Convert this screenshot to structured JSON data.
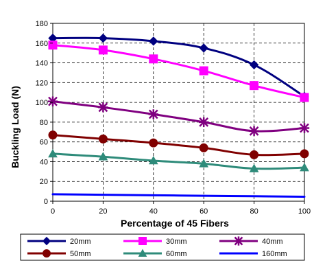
{
  "chart_data": {
    "type": "line",
    "title": "",
    "xlabel": "Percentage of 45 Fibers",
    "ylabel": "Buckling Load (N)",
    "x": [
      0,
      20,
      40,
      60,
      80,
      100
    ],
    "x_ticks": [
      "0",
      "20",
      "40",
      "60",
      "80",
      "100"
    ],
    "y_ticks": [
      "0",
      "20",
      "40",
      "60",
      "80",
      "100",
      "120",
      "140",
      "160",
      "180"
    ],
    "xlim": [
      0,
      100
    ],
    "ylim": [
      0,
      180
    ],
    "grid": true,
    "legend_position": "bottom",
    "series": [
      {
        "name": "20mm",
        "color": "#000080",
        "marker": "diamond",
        "values": [
          165,
          165,
          162,
          155,
          138,
          106
        ]
      },
      {
        "name": "30mm",
        "color": "#ff00ff",
        "marker": "square",
        "values": [
          158,
          153,
          144,
          132,
          117,
          105
        ]
      },
      {
        "name": "40mm",
        "color": "#800080",
        "marker": "star",
        "values": [
          101,
          95,
          88,
          80,
          71,
          74
        ]
      },
      {
        "name": "50mm",
        "color": "#800000",
        "marker": "circle",
        "values": [
          67,
          63,
          59,
          54,
          47,
          48
        ]
      },
      {
        "name": "60mm",
        "color": "#2e8b7a",
        "marker": "triangle",
        "values": [
          48,
          45,
          41,
          38,
          33,
          34
        ]
      },
      {
        "name": "160mm",
        "color": "#0000ff",
        "marker": "none",
        "values": [
          7,
          6.5,
          6,
          5.5,
          5,
          4.5
        ]
      }
    ]
  }
}
